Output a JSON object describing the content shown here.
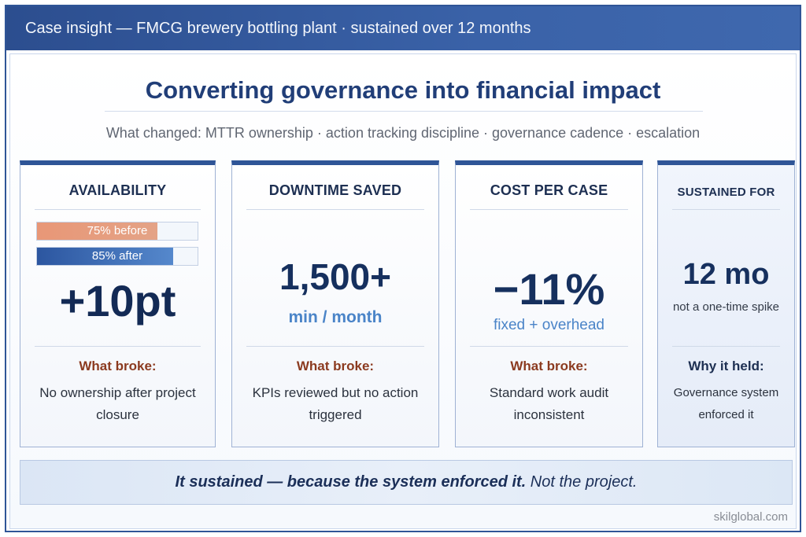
{
  "header": {
    "title": "Case insight — FMCG brewery bottling plant · sustained over 12 months"
  },
  "main": {
    "title": "Converting governance into financial impact",
    "subtitle": "What changed: MTTR ownership · action tracking discipline · governance cadence · escalation"
  },
  "cards": [
    {
      "title": "AVAILABILITY",
      "bars": [
        {
          "label": "75% before",
          "value": 75
        },
        {
          "label": "85% after",
          "value": 85
        }
      ],
      "big": "+10pt",
      "section_label": "What broke:",
      "section_text": "No ownership after project closure"
    },
    {
      "title": "DOWNTIME SAVED",
      "big": "1,500+",
      "unit": "min / month",
      "section_label": "What broke:",
      "section_text": "KPIs reviewed but no action triggered"
    },
    {
      "title": "COST PER CASE",
      "big": "−11%",
      "unit": "fixed + overhead",
      "section_label": "What broke:",
      "section_text": "Standard work audit inconsistent"
    },
    {
      "title": "SUSTAINED FOR",
      "big": "12 mo",
      "unit": "not a one-time spike",
      "section_label": "Why it held:",
      "section_text": "Governance system enforced it"
    }
  ],
  "banner": {
    "strong": "It sustained — because the system enforced it.",
    "light": " Not the project."
  },
  "footer": {
    "source": "skilglobal.com"
  },
  "colors": {
    "brand_blue": "#2f5597",
    "before_bar": "#e89777",
    "after_bar": "#3a6db6",
    "accent_text": "#4a84c8",
    "warning_label": "#8b3a1f"
  }
}
